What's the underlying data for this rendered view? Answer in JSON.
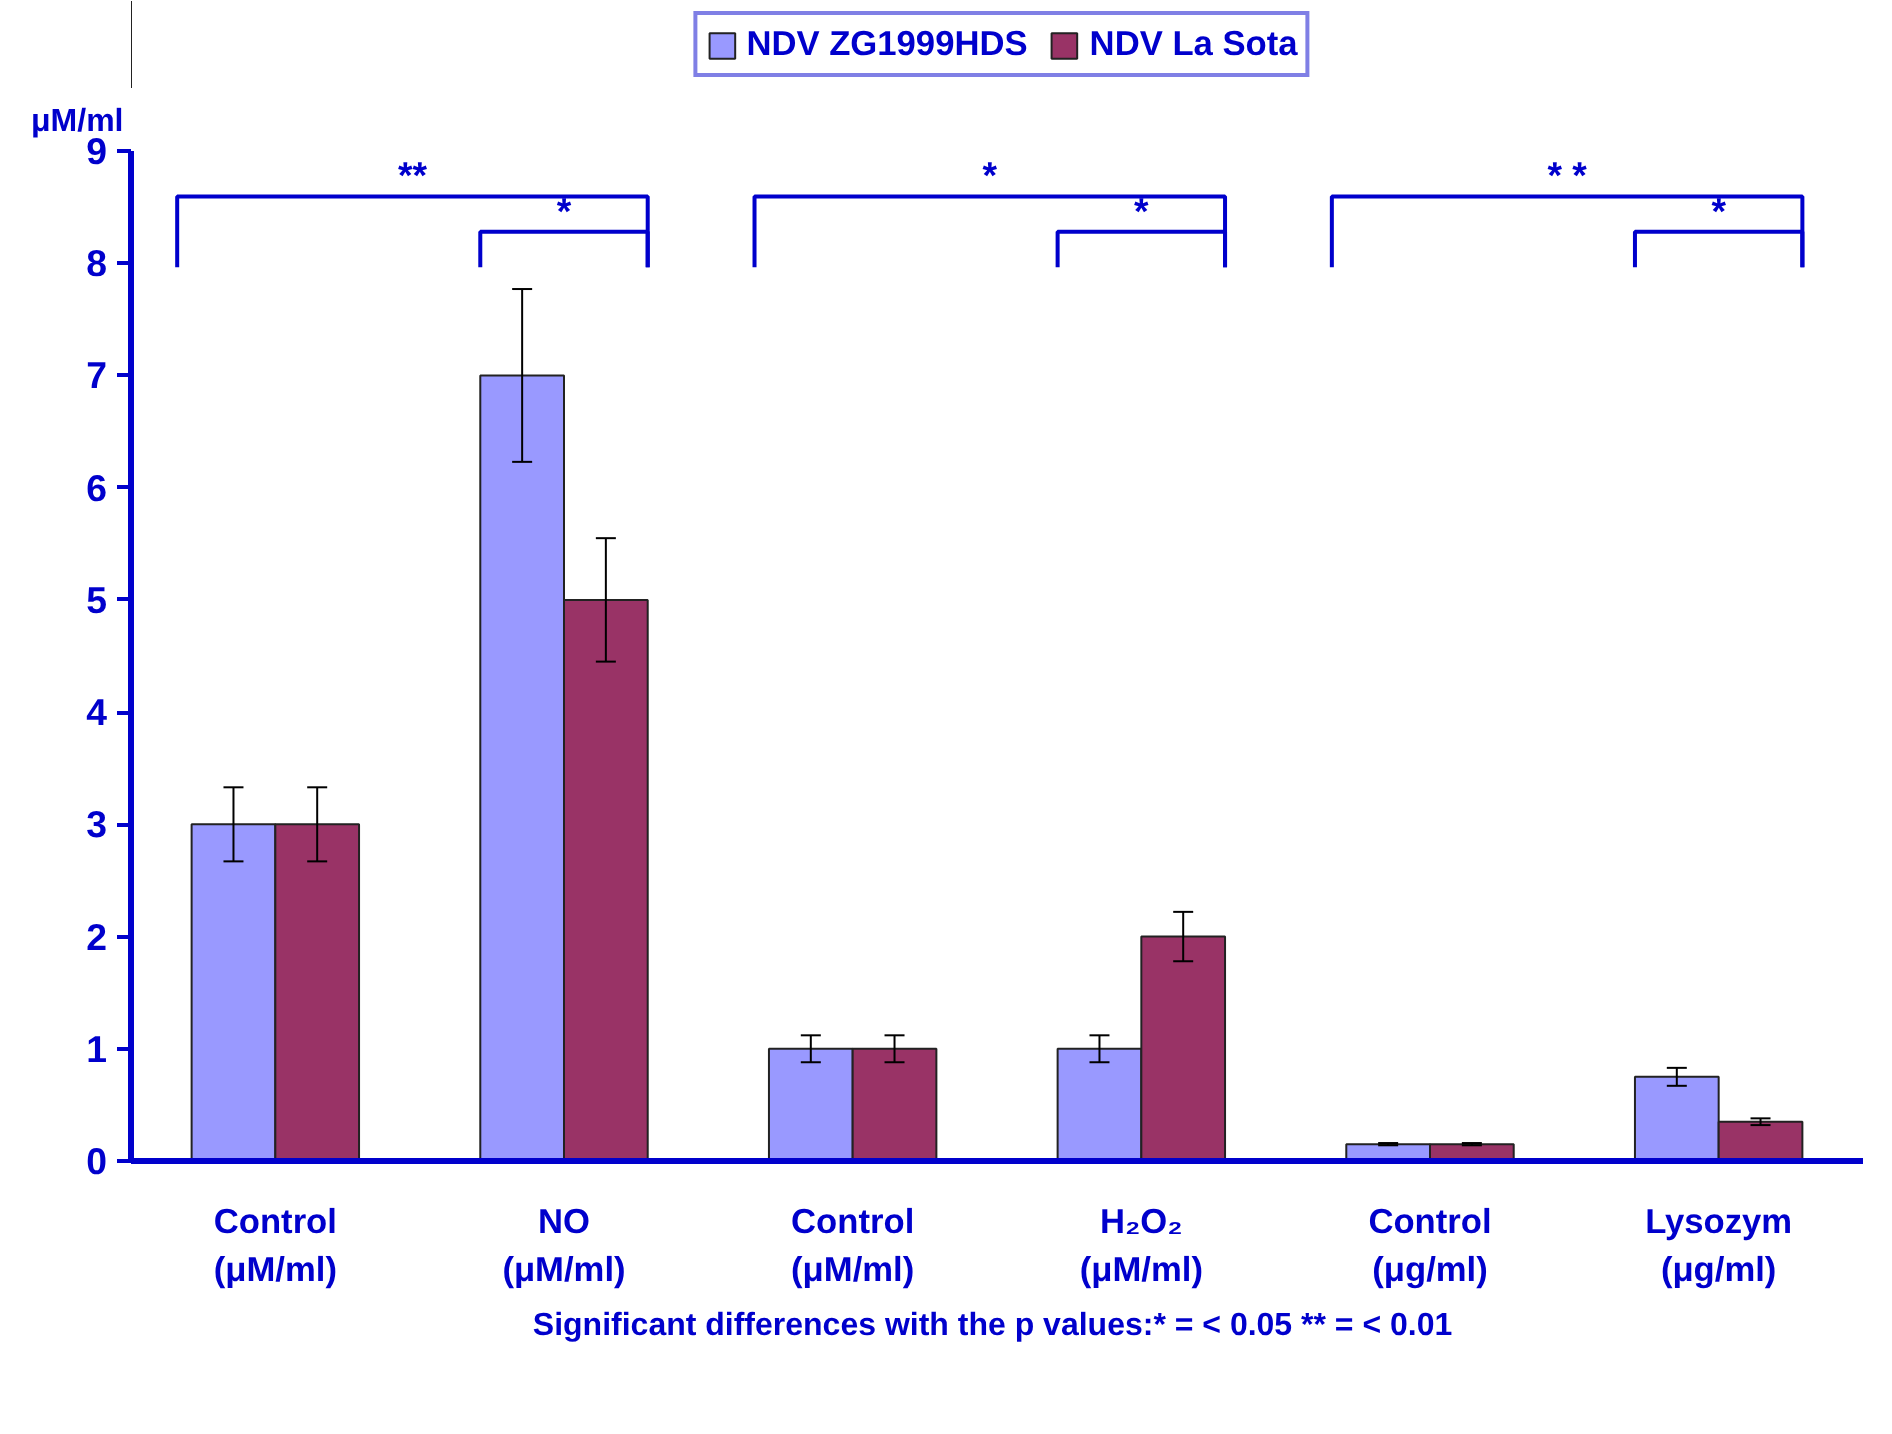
{
  "chart_data": {
    "type": "bar",
    "ylabel": "μM/ml",
    "categories": [
      "Control\n(μM/ml)",
      "NO\n(μM/ml)",
      "Control\n(μM/ml)",
      "H₂O₂\n(μM/ml)",
      "Control\n(μg/ml)",
      "Lysozym\n(μg/ml)"
    ],
    "series": [
      {
        "name": "NDV ZG1999HDS",
        "color": "#9999ff",
        "values": [
          3,
          7,
          1,
          1,
          0.15,
          0.75
        ],
        "errors": [
          0.33,
          0.77,
          0.12,
          0.12,
          0.01,
          0.08
        ]
      },
      {
        "name": "NDV La Sota",
        "color": "#993366",
        "values": [
          3,
          5,
          1,
          2,
          0.15,
          0.35
        ],
        "errors": [
          0.33,
          0.55,
          0.12,
          0.22,
          0.01,
          0.03
        ]
      }
    ],
    "ylim": [
      0,
      9
    ],
    "yticks": [
      0,
      1,
      2,
      3,
      4,
      5,
      6,
      7,
      8,
      9
    ],
    "grid": false,
    "legend": "top",
    "annotations": [
      "**",
      "*",
      "*",
      "*",
      "* *",
      "*",
      "Significant differences with the p values:* = < 0.05 ** = <  0.01"
    ]
  }
}
